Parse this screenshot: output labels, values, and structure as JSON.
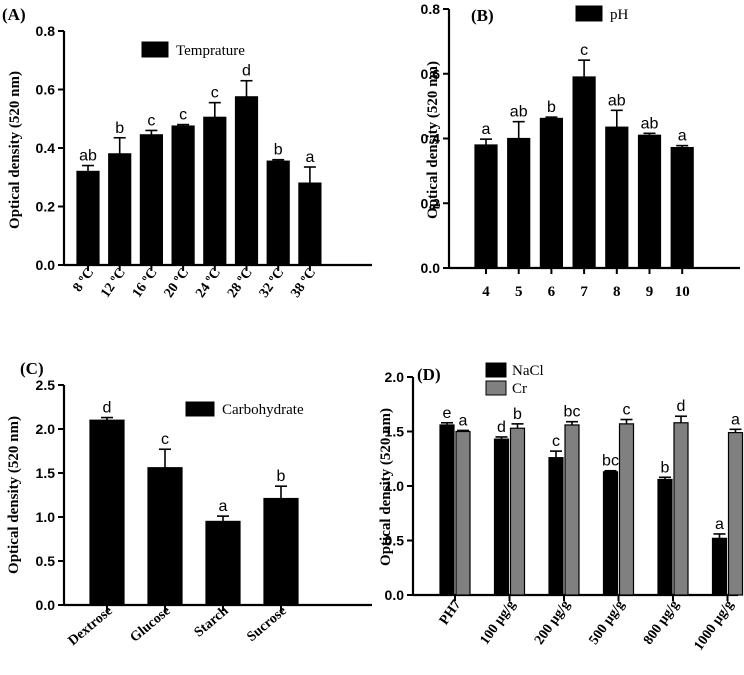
{
  "chart_data": [
    {
      "panel": "(A)",
      "type": "bar",
      "ylabel": "Optical density (520 nm)",
      "ylim": [
        0,
        0.8
      ],
      "yticks": [
        "0.0",
        "0.2",
        "0.4",
        "0.6",
        "0.8"
      ],
      "categories": [
        "8 ºC",
        "12 ºC",
        "16 ºC",
        "20 ºC",
        "24 ºC",
        "28 ºC",
        "32 ºC",
        "38 ºC"
      ],
      "series": [
        {
          "name": "Temprature",
          "color": "#000000",
          "values": [
            0.32,
            0.38,
            0.445,
            0.475,
            0.505,
            0.575,
            0.355,
            0.28
          ],
          "errors": [
            0.02,
            0.055,
            0.015,
            0.005,
            0.05,
            0.055,
            0.005,
            0.055
          ],
          "letters": [
            "ab",
            "b",
            "c",
            "c",
            "c",
            "d",
            "b",
            "a"
          ]
        }
      ],
      "legend": "top-center"
    },
    {
      "panel": "(B)",
      "type": "bar",
      "ylabel": "Optical density (520 nm)",
      "ylim": [
        0,
        0.8
      ],
      "yticks": [
        "0.0",
        "0.2",
        "0.4",
        "0.6",
        "0.8"
      ],
      "categories": [
        "4",
        "5",
        "6",
        "7",
        "8",
        "9",
        "10"
      ],
      "series": [
        {
          "name": "pH",
          "color": "#000000",
          "values": [
            0.38,
            0.4,
            0.462,
            0.59,
            0.435,
            0.41,
            0.372
          ],
          "errors": [
            0.018,
            0.052,
            0.004,
            0.052,
            0.052,
            0.006,
            0.006
          ],
          "letters": [
            "a",
            "ab",
            "b",
            "c",
            "ab",
            "ab",
            "a"
          ]
        }
      ],
      "legend": "top-right"
    },
    {
      "panel": "(C)",
      "type": "bar",
      "ylabel": "Optical density (520 nm)",
      "ylim": [
        0,
        2.5
      ],
      "yticks": [
        "0.0",
        "0.5",
        "1.0",
        "1.5",
        "2.0",
        "2.5"
      ],
      "categories": [
        "Dextrose",
        "Glucose",
        "Starch",
        "Sucrose"
      ],
      "series": [
        {
          "name": "Carbohydrate",
          "color": "#000000",
          "values": [
            2.1,
            1.56,
            0.95,
            1.21
          ],
          "errors": [
            0.03,
            0.21,
            0.06,
            0.14
          ],
          "letters": [
            "d",
            "c",
            "a",
            "b"
          ]
        }
      ],
      "legend": "top-right"
    },
    {
      "panel": "(D)",
      "type": "bar",
      "ylabel": "Optical density (520 nm)",
      "ylim": [
        0,
        2.0
      ],
      "yticks": [
        "0.0",
        "0.5",
        "1.0",
        "1.5",
        "2.0"
      ],
      "categories": [
        "PH7",
        "100 µg/g",
        "200 µg/g",
        "500 µg/g",
        "800 µg/g",
        "1000 µg/g"
      ],
      "series": [
        {
          "name": "NaCl",
          "color": "#000000",
          "values": [
            1.56,
            1.43,
            1.26,
            1.13,
            1.06,
            0.52
          ],
          "errors": [
            0.02,
            0.02,
            0.06,
            0.01,
            0.02,
            0.04
          ],
          "letters": [
            "e",
            "d",
            "c",
            "bc",
            "b",
            "a"
          ]
        },
        {
          "name": "Cr",
          "color": "#808080",
          "values": [
            1.5,
            1.53,
            1.56,
            1.57,
            1.58,
            1.49
          ],
          "errors": [
            0.01,
            0.04,
            0.03,
            0.04,
            0.06,
            0.03
          ],
          "letters": [
            "a",
            "b",
            "bc",
            "c",
            "d",
            "a"
          ]
        }
      ],
      "legend": "top-center"
    }
  ]
}
